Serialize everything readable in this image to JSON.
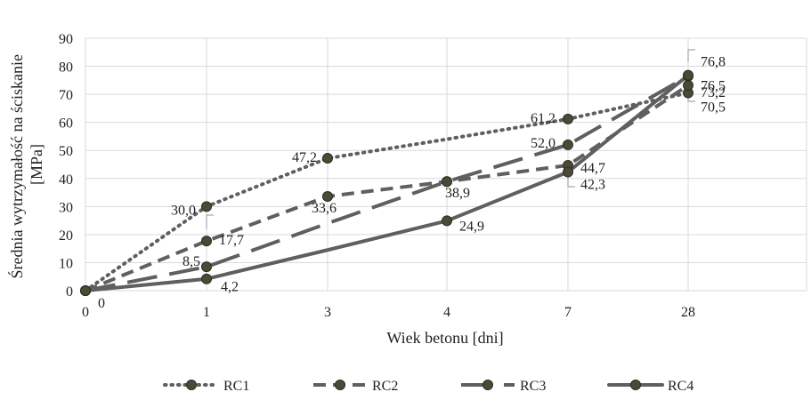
{
  "chart_data": {
    "type": "line",
    "title": "",
    "xlabel": "Wiek betonu [dni]",
    "ylabel_lines": [
      "Średnia wytrzymałość na ściskanie",
      "[MPa]"
    ],
    "categories": [
      "0",
      "1",
      "3",
      "4",
      "7",
      "28"
    ],
    "ylim": [
      0,
      90
    ],
    "yticks": [
      "0",
      "10",
      "20",
      "30",
      "40",
      "50",
      "60",
      "70",
      "80",
      "90"
    ],
    "grid": true,
    "legend_position": "bottom",
    "series": [
      {
        "name": "RC1",
        "values": [
          0,
          30.0,
          47.2,
          54.0,
          61.2,
          70.5
        ],
        "labels": [
          "",
          "30,0",
          "47,2",
          "",
          "61,2",
          "70,5"
        ],
        "dash": "dotted"
      },
      {
        "name": "RC2",
        "values": [
          0,
          17.7,
          33.6,
          38.9,
          44.7,
          73.2
        ],
        "labels": [
          "",
          "17,7",
          "33,6",
          "38,9",
          "44,7",
          "73,2"
        ],
        "dash": "dashed"
      },
      {
        "name": "RC3",
        "values": [
          0,
          8.5,
          24.0,
          38.9,
          52.0,
          76.5
        ],
        "labels": [
          "",
          "8,5",
          "",
          "",
          "52,0",
          "76,5"
        ],
        "dash": "longdash"
      },
      {
        "name": "RC4",
        "values": [
          0,
          4.2,
          14.5,
          24.9,
          42.3,
          76.8
        ],
        "labels": [
          "0",
          "4,2",
          "",
          "24,9",
          "42,3",
          "76,8"
        ],
        "dash": "solid"
      }
    ],
    "colors": {
      "line": "#5f5f5f",
      "marker_fill": "#4a4a36",
      "marker_stroke": "#2c2c22",
      "grid": "#d9d9d9",
      "leader": "#a6a6a6"
    }
  }
}
